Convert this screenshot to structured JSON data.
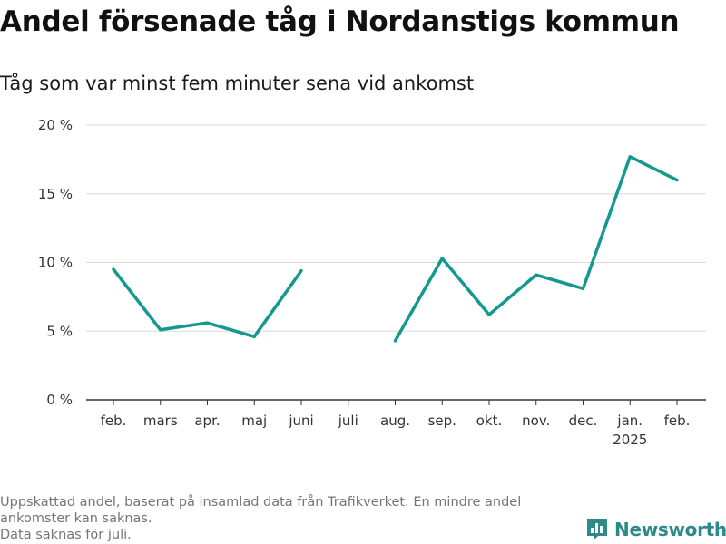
{
  "title": "Andel försenade tåg i Nordanstigs kommun",
  "subtitle": "Tåg som var minst fem minuter sena vid ankomst",
  "footnote": {
    "line1": "Uppskattad andel, baserat på insamlad data från Trafikverket. En mindre andel",
    "line2": "ankomster kan saknas.",
    "line3": "Data saknas för juli."
  },
  "logo": {
    "text": "Newsworthy",
    "icon": "bar-chart-logo-icon"
  },
  "colors": {
    "line": "#13998f",
    "grid": "#d9d9d9",
    "axis": "#333333",
    "logo": "#2d8a8a"
  },
  "chart_data": {
    "type": "line",
    "title": "Andel försenade tåg i Nordanstigs kommun",
    "subtitle": "Tåg som var minst fem minuter sena vid ankomst",
    "categories": [
      "feb.",
      "mars",
      "apr.",
      "maj",
      "juni",
      "juli",
      "aug.",
      "sep.",
      "okt.",
      "nov.",
      "dec.",
      "jan.",
      "feb."
    ],
    "category_sublabels": [
      "",
      "",
      "",
      "",
      "",
      "",
      "",
      "",
      "",
      "",
      "",
      "2025",
      ""
    ],
    "series": [
      {
        "values": [
          9.5,
          5.1,
          5.6,
          4.6,
          9.4,
          null,
          4.3,
          10.3,
          6.2,
          9.1,
          8.1,
          17.7,
          16.0
        ]
      }
    ],
    "ylim": [
      0,
      20
    ],
    "yticks": [
      0,
      5,
      10,
      15,
      20
    ],
    "ytick_labels": [
      "0 %",
      "5 %",
      "10 %",
      "15 %",
      "20 %"
    ],
    "xlabel": "",
    "ylabel": "",
    "grid": true,
    "legend": "none"
  }
}
